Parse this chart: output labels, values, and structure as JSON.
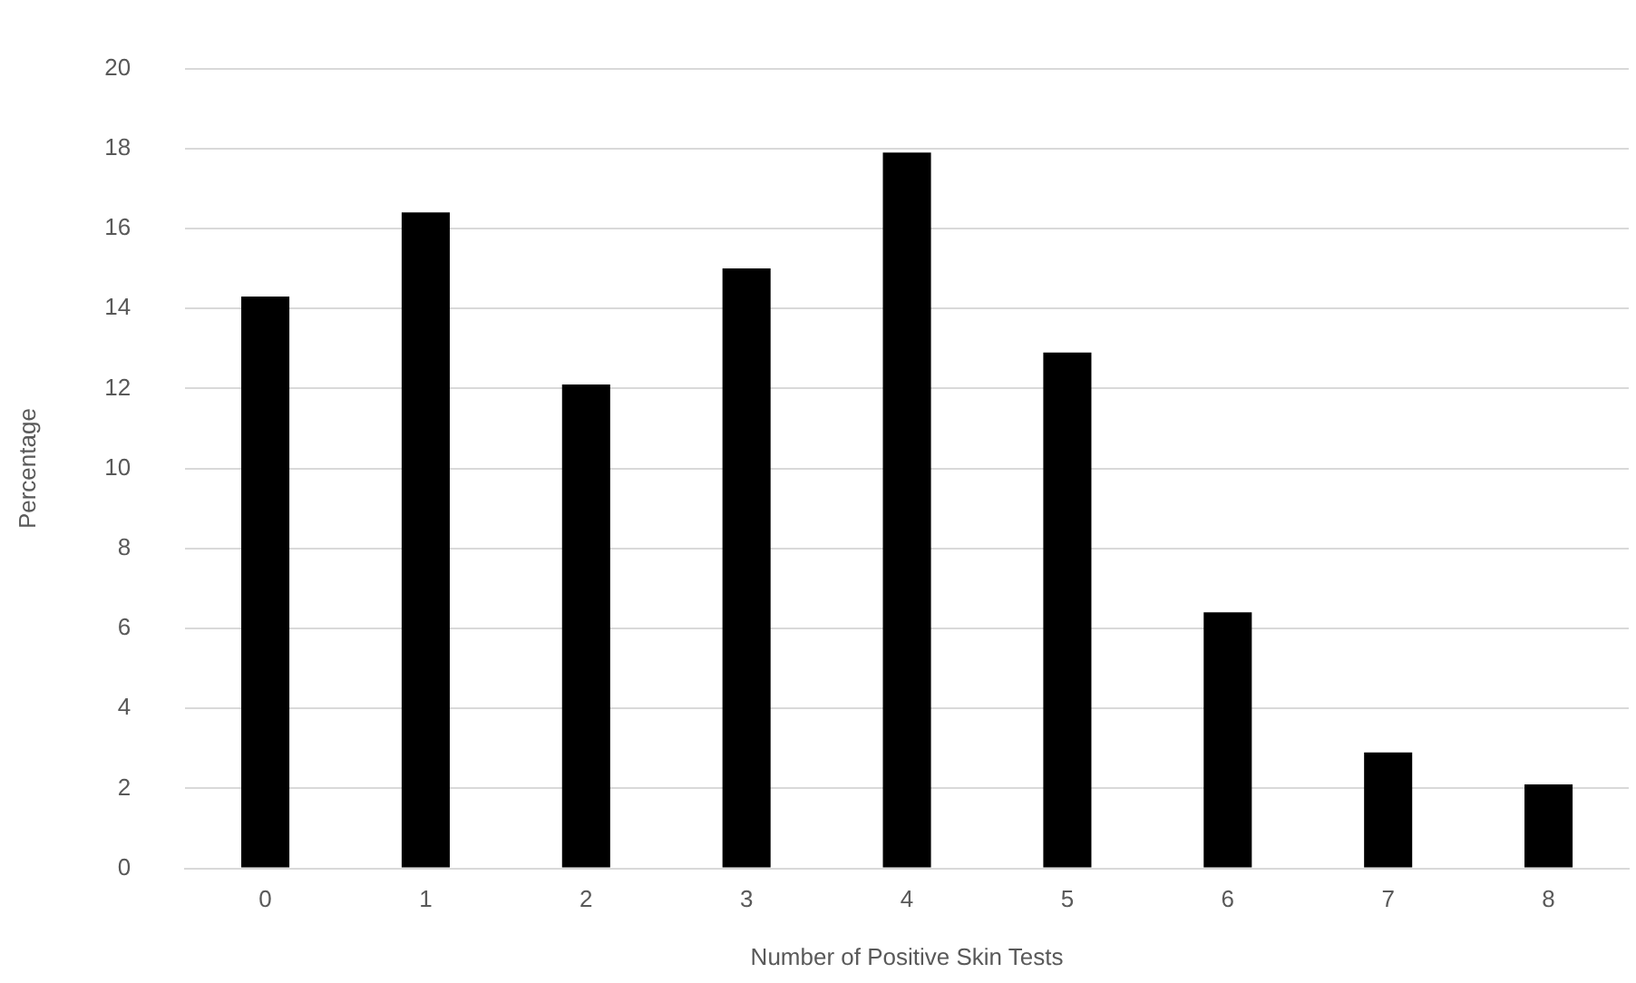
{
  "chart_data": {
    "type": "bar",
    "xlabel": "Number of Positive Skin Tests",
    "ylabel": "Percentage",
    "categories": [
      "0",
      "1",
      "2",
      "3",
      "4",
      "5",
      "6",
      "7",
      "8"
    ],
    "values": [
      14.3,
      16.4,
      12.1,
      15.0,
      17.9,
      12.9,
      6.4,
      2.9,
      2.1
    ],
    "color": "#000000",
    "ylim": [
      0,
      20
    ],
    "yticks": [
      0,
      2,
      4,
      6,
      8,
      10,
      12,
      14,
      16,
      18,
      20
    ],
    "grid": "y",
    "legend": false
  }
}
